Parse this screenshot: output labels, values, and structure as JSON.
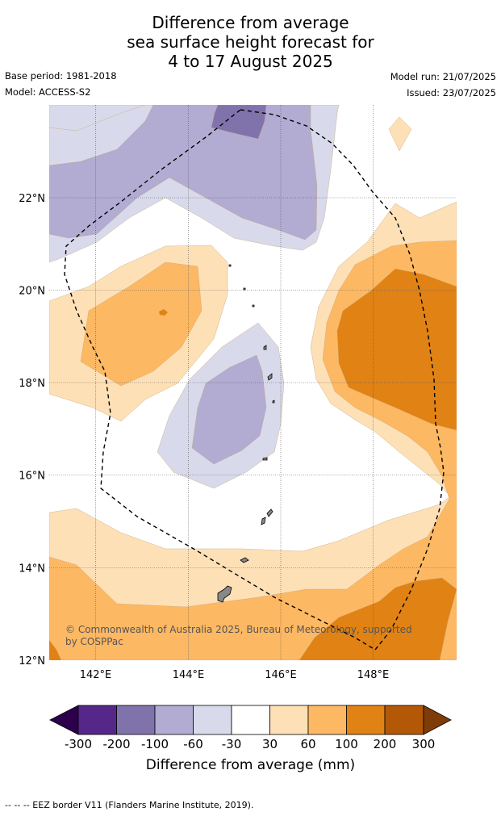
{
  "title": {
    "line1": "Difference from average",
    "line2": "sea surface height forecast for",
    "line3": "4 to 17 August 2025"
  },
  "meta": {
    "base_period": "Base period: 1981-2018",
    "model": "Model: ACCESS-S2",
    "model_run": "Model run: 21/07/2025",
    "issued": "Issued: 23/07/2025"
  },
  "map": {
    "lon_range": [
      141,
      149.8
    ],
    "lat_range": [
      12,
      24
    ],
    "x_ticks": [
      "142°E",
      "144°E",
      "146°E",
      "148°E"
    ],
    "y_ticks": [
      "12°N",
      "14°N",
      "16°N",
      "18°N",
      "20°N",
      "22°N"
    ],
    "copyright_line1": "© Commonwealth of Australia 2025, Bureau of Meteorology, supported",
    "copyright_line2": "by COSPPac",
    "colors": {
      "m300": "#2d004b",
      "m200": "#542788",
      "m100": "#8073ac",
      "m60": "#b2abd2",
      "m30": "#d8daeb",
      "zero": "#ffffff",
      "p30": "#fee0b6",
      "p60": "#fdb863",
      "p100": "#e08214",
      "p200": "#b35806",
      "p300": "#7f3b08",
      "land": "#888888"
    }
  },
  "colorbar": {
    "labels": [
      "-300",
      "-200",
      "-100",
      "-60",
      "-30",
      "30",
      "60",
      "100",
      "200",
      "300"
    ],
    "title": "Difference from average (mm)"
  },
  "footnote": "--  --  -- EEZ border V11 (Flanders Marine Institute, 2019)."
}
